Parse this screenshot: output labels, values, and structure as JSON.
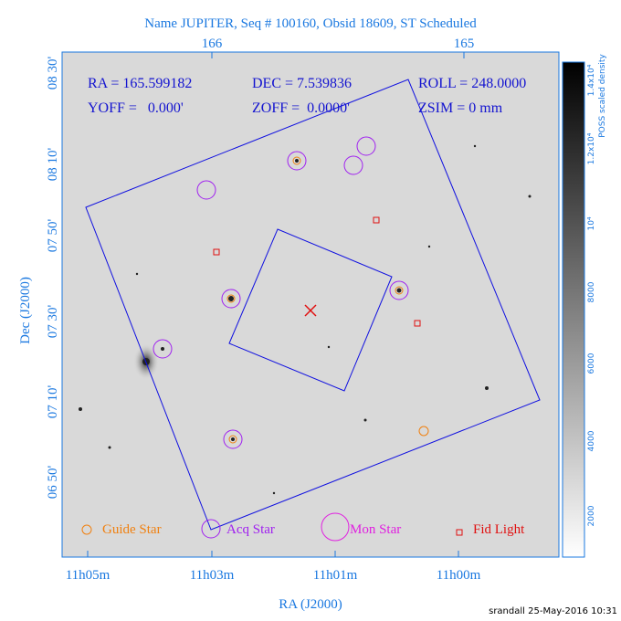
{
  "header": {
    "title": "Name JUPITER, Seq # 100160, Obsid 18609, ST Scheduled"
  },
  "axes": {
    "top_ticks": [
      "166",
      "165"
    ],
    "left_ticks": [
      "08 30'",
      "08 10'",
      "07 50'",
      "07 30'",
      "07 10'",
      "06 50'"
    ],
    "bottom_ticks": [
      "11h05m",
      "11h03m",
      "11h01m",
      "11h00m"
    ],
    "x_label": "RA (J2000)",
    "y_label": "Dec (J2000)"
  },
  "info": {
    "row1": [
      "RA = 165.599182",
      "DEC = 7.539836",
      "ROLL = 248.0000"
    ],
    "row2": [
      "YOFF =   0.000'",
      "ZOFF =  0.0000'",
      "ZSIM = 0 mm"
    ]
  },
  "legend": [
    "Guide Star",
    "Acq Star",
    "Mon Star",
    "Fid Light"
  ],
  "colorbar": {
    "label": "POSS scaled density",
    "ticks": [
      "2000",
      "4000",
      "6000",
      "8000",
      "10⁴",
      "1.2x10⁴",
      "1.4x10⁴"
    ]
  },
  "footer": "srandall 25-May-2016 10:31"
}
